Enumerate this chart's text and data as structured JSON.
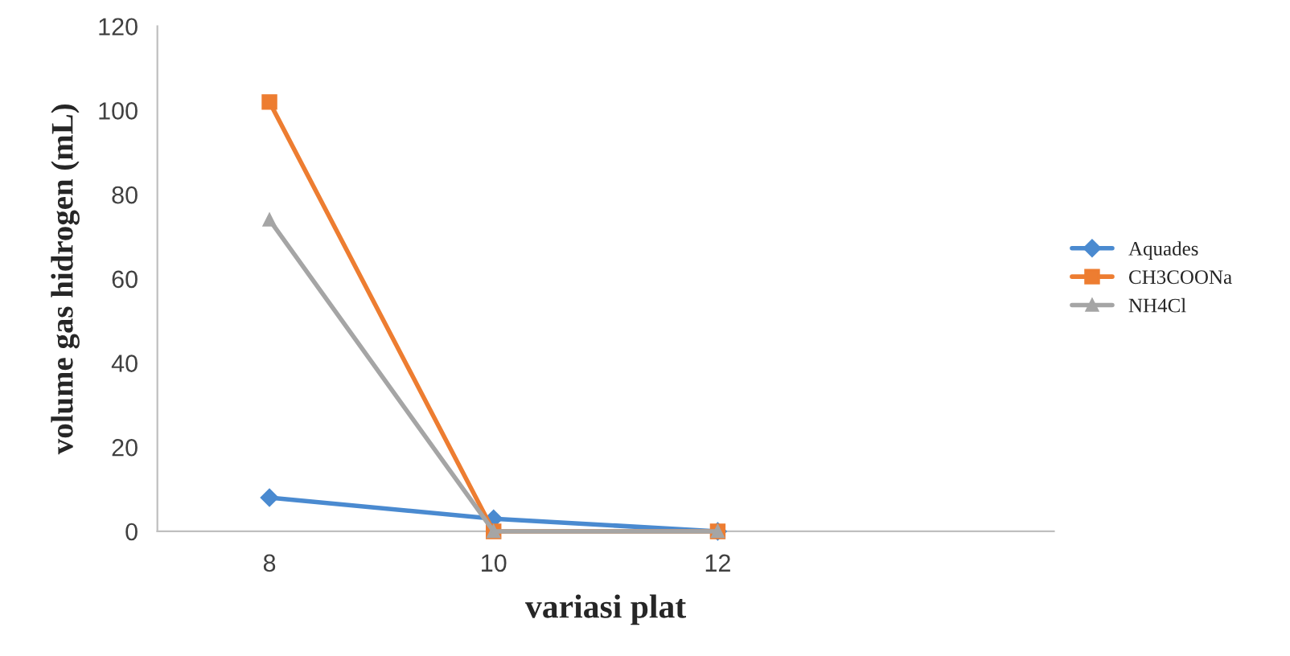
{
  "chart_data": {
    "type": "line",
    "xlabel": "variasi plat",
    "ylabel": "volume gas hidrogen (mL)",
    "categories": [
      "8",
      "10",
      "12",
      null
    ],
    "series": [
      {
        "name": "Aquades",
        "color": "#4a8ad0",
        "values": [
          8,
          3,
          0,
          null
        ],
        "marker": "diamond"
      },
      {
        "name": "CH3COONa",
        "color": "#ed7d31",
        "values": [
          102,
          0,
          0,
          null
        ],
        "marker": "square"
      },
      {
        "name": "NH4Cl",
        "color": "#a5a5a5",
        "values": [
          74,
          0,
          0,
          null
        ],
        "marker": "triangle"
      }
    ],
    "ylim": [
      0,
      120
    ],
    "yticks": [
      0,
      20,
      40,
      60,
      80,
      100,
      120
    ],
    "grid": false,
    "legend": "right"
  }
}
